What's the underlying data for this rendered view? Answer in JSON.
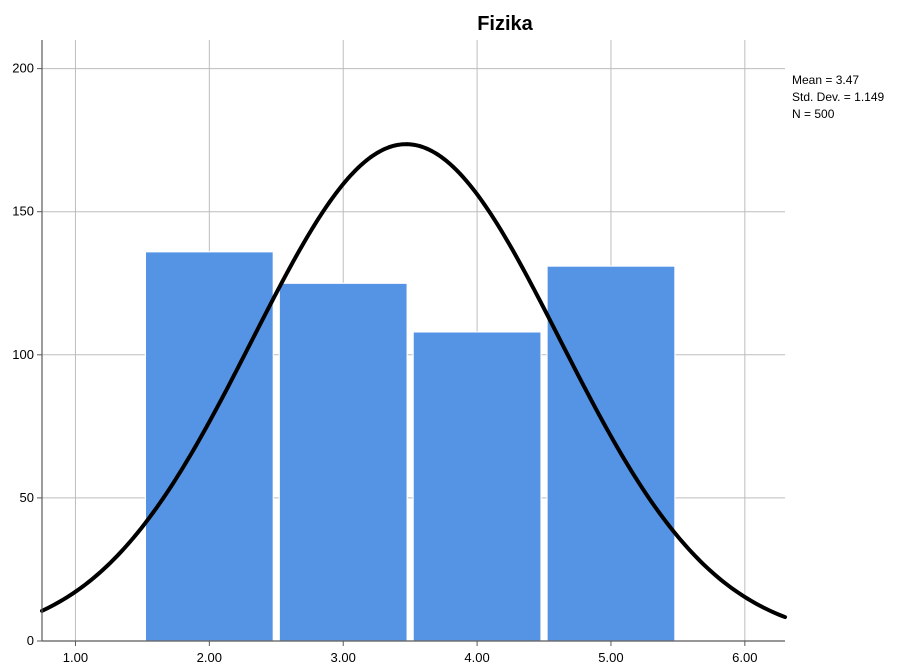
{
  "chart_data": {
    "type": "bar",
    "title": "Fizika",
    "xlabel": "",
    "ylabel": "",
    "x_ticks": [
      "1.00",
      "2.00",
      "3.00",
      "4.00",
      "5.00",
      "6.00"
    ],
    "y_ticks": [
      "0",
      "50",
      "100",
      "150",
      "200"
    ],
    "xlim": [
      0.75,
      6.3
    ],
    "ylim": [
      0,
      210
    ],
    "bins": [
      {
        "start": 1.5,
        "end": 2.5,
        "value": 136
      },
      {
        "start": 2.5,
        "end": 3.5,
        "value": 125
      },
      {
        "start": 3.5,
        "end": 4.5,
        "value": 108
      },
      {
        "start": 4.5,
        "end": 5.5,
        "value": 131
      }
    ],
    "normal_curve": {
      "mean": 3.47,
      "std_dev": 1.149,
      "n": 500,
      "bin_width": 1
    },
    "stats": {
      "mean_text": "Mean = 3.47",
      "std_text": "Std. Dev. = 1.149",
      "n_text": "N = 500"
    },
    "grid": true,
    "bar_color": "#5594E5",
    "curve_color": "#000000",
    "grid_color": "#BDBDBD",
    "axis_color": "#595959"
  }
}
